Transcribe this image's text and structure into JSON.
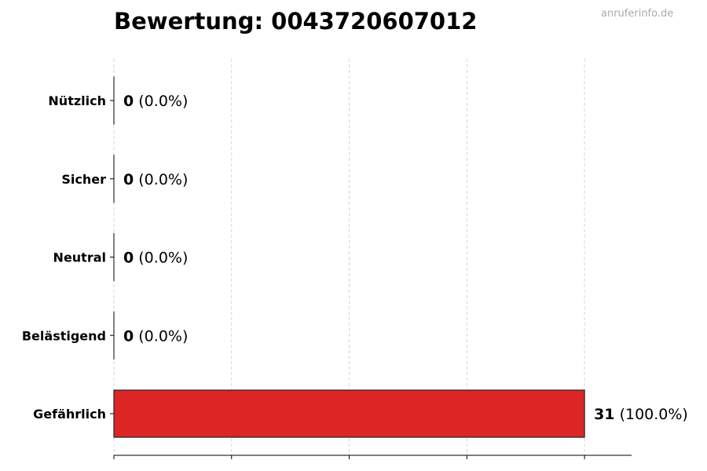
{
  "chart_data": {
    "type": "bar",
    "orientation": "horizontal",
    "title": "Bewertung: 0043720607012",
    "watermark": "anruferinfo.de",
    "categories": [
      "Nützlich",
      "Sicher",
      "Neutral",
      "Belästigend",
      "Gefährlich"
    ],
    "values": [
      0,
      0,
      0,
      0,
      31
    ],
    "value_labels": [
      "0",
      "0",
      "0",
      "0",
      "31"
    ],
    "percent_labels": [
      "(0.0%)",
      "(0.0%)",
      "(0.0%)",
      "(0.0%)",
      "(100.0%)"
    ],
    "colors": [
      "#2e7d32",
      "#66bb6a",
      "#9e9e9e",
      "#ff9800",
      "#dc2626"
    ],
    "xlim": [
      0,
      34.1
    ],
    "xticks": [
      0,
      7.75,
      15.5,
      23.25,
      31
    ],
    "grid": "x-dashed",
    "xlabel": "",
    "ylabel": ""
  }
}
